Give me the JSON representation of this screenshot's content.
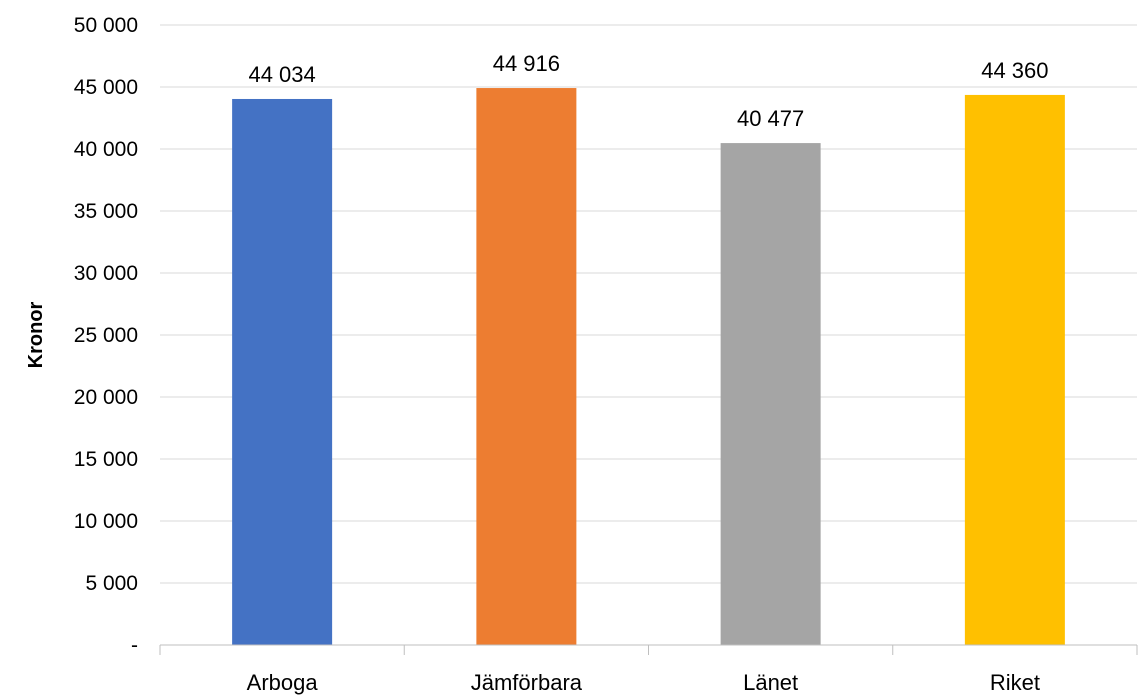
{
  "chart_data": {
    "type": "bar",
    "title": "",
    "xlabel": "",
    "ylabel": "Kronor",
    "ylim": [
      0,
      50000
    ],
    "ytick_values": [
      0,
      5000,
      10000,
      15000,
      20000,
      25000,
      30000,
      35000,
      40000,
      45000,
      50000
    ],
    "ytick_labels": [
      "-",
      "5 000",
      "10 000",
      "15 000",
      "20 000",
      "25 000",
      "30 000",
      "35 000",
      "40 000",
      "45 000",
      "50 000"
    ],
    "categories": [
      "Arboga",
      "Jämförbara",
      "Länet",
      "Riket"
    ],
    "values": [
      44034,
      44916,
      40477,
      44360
    ],
    "data_labels": [
      "44 034",
      "44 916",
      "40 477",
      "44 360"
    ],
    "colors": [
      "#4472c4",
      "#ed7d31",
      "#a5a5a5",
      "#ffc000"
    ],
    "grid": true,
    "legend": "none"
  }
}
